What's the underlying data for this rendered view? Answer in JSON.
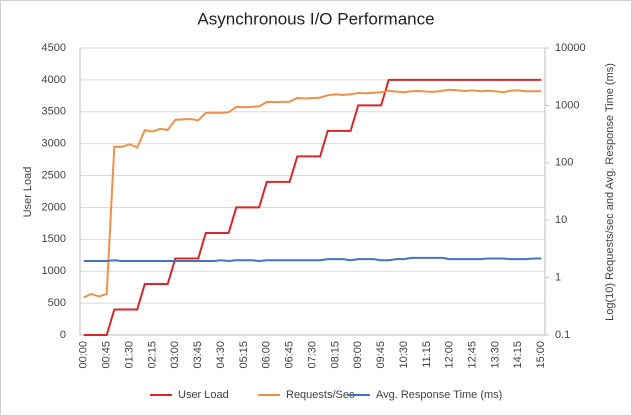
{
  "chart_data": {
    "type": "line",
    "title": "Asynchronous I/O Performance",
    "y_label": "User Load",
    "y2_label": "Log(10) Requests/sec and Avg. Response Time (ms)",
    "categories": [
      "00:00",
      null,
      null,
      "00:45",
      null,
      null,
      "01:30",
      null,
      null,
      "02:15",
      null,
      null,
      "03:00",
      null,
      null,
      "03:45",
      null,
      null,
      "04:30",
      null,
      null,
      "05:15",
      null,
      null,
      "06:00",
      null,
      null,
      "06:45",
      null,
      null,
      "07:30",
      null,
      null,
      "08:15",
      null,
      null,
      "09:00",
      null,
      null,
      "09:45",
      null,
      null,
      "10:30",
      null,
      null,
      "11:15",
      null,
      null,
      "12:00",
      null,
      null,
      "12:45",
      null,
      null,
      "13:30",
      null,
      null,
      "14:15",
      null,
      null,
      "15:00"
    ],
    "ylim": [
      0,
      4500
    ],
    "yticks": [
      0,
      500,
      1000,
      1500,
      2000,
      2500,
      3000,
      3500,
      4000,
      4500
    ],
    "y2lim": [
      0.1,
      10000
    ],
    "y2ticks": [
      0.1,
      1,
      10,
      100,
      1000,
      10000
    ],
    "y2log": true,
    "grid": true,
    "legend": "bottom",
    "series": [
      {
        "name": "User Load",
        "color": "#d9262a",
        "values": [
          0,
          0,
          0,
          0,
          400,
          400,
          400,
          400,
          800,
          800,
          800,
          800,
          1200,
          1200,
          1200,
          1200,
          1600,
          1600,
          1600,
          1600,
          2000,
          2000,
          2000,
          2000,
          2400,
          2400,
          2400,
          2400,
          2800,
          2800,
          2800,
          2800,
          3200,
          3200,
          3200,
          3200,
          3600,
          3600,
          3600,
          3600,
          4000,
          4000,
          4000,
          4000,
          4000,
          4000,
          4000,
          4000,
          4000,
          4000,
          4000,
          4000,
          4000,
          4000,
          4000,
          4000,
          4000,
          4000,
          4000,
          4000,
          4000
        ]
      },
      {
        "name": "Requests/Sec",
        "color": "#f0914a",
        "axis": "y2",
        "values": [
          0.45,
          0.52,
          0.47,
          0.52,
          190,
          190,
          210,
          185,
          370,
          350,
          390,
          375,
          560,
          570,
          580,
          550,
          740,
          750,
          740,
          760,
          940,
          930,
          940,
          960,
          1150,
          1140,
          1150,
          1160,
          1350,
          1320,
          1340,
          1370,
          1500,
          1560,
          1520,
          1560,
          1650,
          1620,
          1660,
          1700,
          1800,
          1740,
          1700,
          1760,
          1780,
          1740,
          1720,
          1800,
          1880,
          1840,
          1780,
          1840,
          1760,
          1800,
          1760,
          1700,
          1800,
          1840,
          1760,
          1760,
          1760
        ]
      },
      {
        "name": "Avg. Response Time (ms)",
        "color": "#4472c4",
        "axis": "y2",
        "values": [
          1.95,
          1.95,
          1.95,
          1.95,
          2.0,
          1.95,
          1.95,
          1.95,
          1.95,
          1.95,
          1.95,
          1.95,
          1.95,
          1.95,
          1.95,
          1.95,
          1.95,
          1.95,
          2.0,
          1.95,
          2.0,
          2.0,
          2.0,
          1.95,
          2.0,
          2.0,
          2.0,
          2.0,
          2.0,
          2.0,
          2.0,
          2.0,
          2.1,
          2.1,
          2.1,
          2.0,
          2.1,
          2.1,
          2.1,
          2.0,
          2.0,
          2.1,
          2.1,
          2.2,
          2.2,
          2.2,
          2.2,
          2.2,
          2.1,
          2.1,
          2.1,
          2.1,
          2.1,
          2.15,
          2.15,
          2.15,
          2.1,
          2.1,
          2.1,
          2.15,
          2.15
        ]
      }
    ]
  }
}
